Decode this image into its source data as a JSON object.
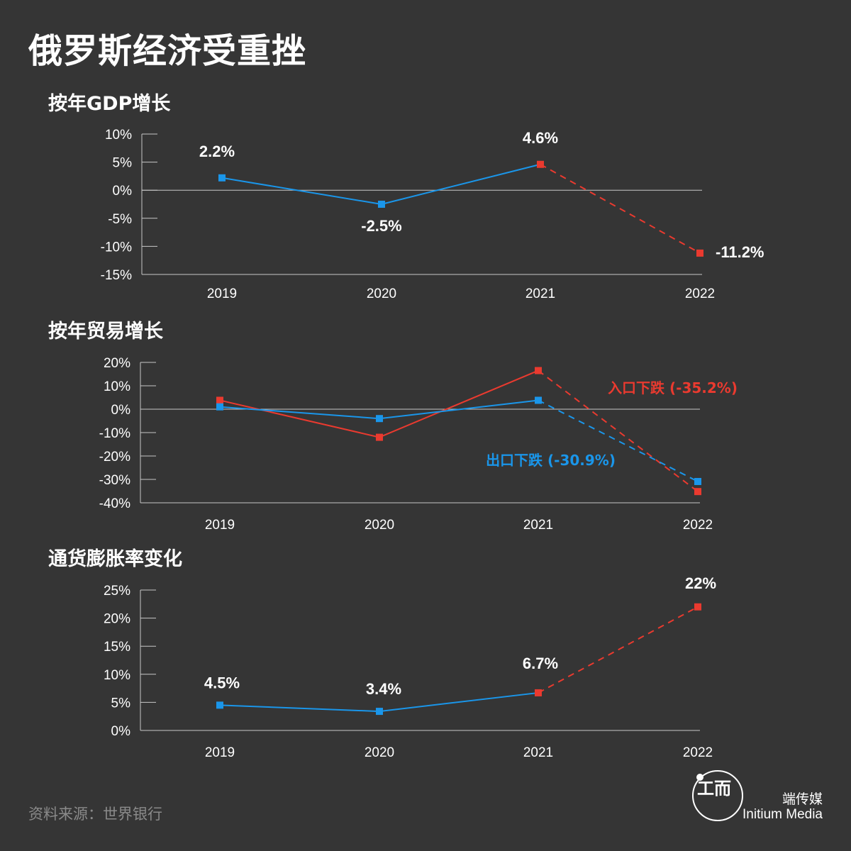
{
  "title": "俄罗斯经济受重挫",
  "source": "资料来源：世界银行",
  "brand": {
    "name_cn": "端传媒",
    "name_en": "Initium Media",
    "logo_glyph": "工而"
  },
  "colors": {
    "background": "#353535",
    "blue": "#1a96ea",
    "red": "#ea3a2f",
    "axis": "#c8c8c8",
    "text": "#ffffff"
  },
  "chart_data": [
    {
      "type": "line",
      "title": "按年GDP增长",
      "categories": [
        "2019",
        "2020",
        "2021",
        "2022"
      ],
      "ylim": [
        -15,
        10
      ],
      "yticks": [
        10,
        5,
        0,
        -5,
        -10,
        -15
      ],
      "ytick_labels": [
        "10%",
        "5%",
        "0%",
        "-5%",
        "-10%",
        "-15%"
      ],
      "series": [
        {
          "values": [
            2.2,
            -2.5,
            4.6,
            -11.2
          ],
          "color": "#1a96ea",
          "projected_color": "#ea3a2f",
          "projected_from_index": 2
        }
      ],
      "annotations": [
        {
          "index": 0,
          "value": 2.2,
          "text": "2.2%"
        },
        {
          "index": 1,
          "value": -2.5,
          "text": "-2.5%"
        },
        {
          "index": 2,
          "value": 4.6,
          "text": "4.6%"
        },
        {
          "index": 3,
          "value": -11.2,
          "text": "-11.2%"
        }
      ]
    },
    {
      "type": "line",
      "title": "按年贸易增长",
      "categories": [
        "2019",
        "2020",
        "2021",
        "2022"
      ],
      "ylim": [
        -40,
        20
      ],
      "yticks": [
        20,
        10,
        0,
        -10,
        -20,
        -30,
        -40
      ],
      "ytick_labels": [
        "20%",
        "10%",
        "0%",
        "-10%",
        "-20%",
        "-30%",
        "-40%"
      ],
      "series": [
        {
          "name": "入口下跌 (-35.2%)",
          "values": [
            3.8,
            -12.0,
            16.5,
            -35.2
          ],
          "color": "#ea3a2f",
          "projected_color": "#ea3a2f",
          "projected_from_index": 2
        },
        {
          "name": "出口下跌 (-30.9%)",
          "values": [
            1.0,
            -4.0,
            3.8,
            -30.9
          ],
          "color": "#1a96ea",
          "projected_color": "#1a96ea",
          "projected_from_index": 2
        }
      ],
      "annotations": []
    },
    {
      "type": "line",
      "title": "通货膨胀率变化",
      "categories": [
        "2019",
        "2020",
        "2021",
        "2022"
      ],
      "ylim": [
        0,
        25
      ],
      "yticks": [
        25,
        20,
        15,
        10,
        5,
        0
      ],
      "ytick_labels": [
        "25%",
        "20%",
        "15%",
        "10%",
        "5%",
        "0%"
      ],
      "series": [
        {
          "values": [
            4.5,
            3.4,
            6.7,
            22
          ],
          "color": "#1a96ea",
          "projected_color": "#ea3a2f",
          "projected_from_index": 2
        }
      ],
      "annotations": [
        {
          "index": 0,
          "value": 4.5,
          "text": "4.5%"
        },
        {
          "index": 1,
          "value": 3.4,
          "text": "3.4%"
        },
        {
          "index": 2,
          "value": 6.7,
          "text": "6.7%"
        },
        {
          "index": 3,
          "value": 22,
          "text": "22%"
        }
      ]
    }
  ]
}
